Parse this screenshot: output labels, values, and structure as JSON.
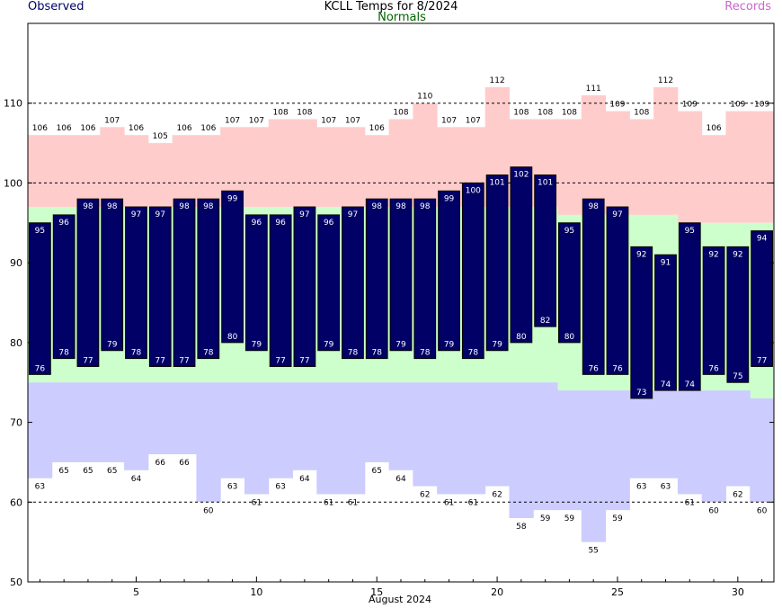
{
  "header": {
    "title": "KCLL Temps for 8/2024",
    "observed_label": "Observed",
    "normals_label": "Normals",
    "records_label": "Records"
  },
  "chart_data": {
    "type": "bar",
    "title": "KCLL Temps for 8/2024",
    "xlabel": "August 2024",
    "ylabel": "",
    "xlim": [
      0.5,
      31.5
    ],
    "ylim": [
      50,
      120
    ],
    "x_ticks": [
      5,
      10,
      15,
      20,
      25,
      30
    ],
    "y_ticks": [
      50,
      60,
      70,
      80,
      90,
      100,
      110
    ],
    "gridlines_y": [
      60,
      100,
      110
    ],
    "legend": [
      "Observed",
      "Normals",
      "Records"
    ],
    "colors": {
      "observed": "#000066",
      "normals": "#ccffcc",
      "record_high": "#ffcccc",
      "record_low": "#ccccff"
    },
    "days": [
      1,
      2,
      3,
      4,
      5,
      6,
      7,
      8,
      9,
      10,
      11,
      12,
      13,
      14,
      15,
      16,
      17,
      18,
      19,
      20,
      21,
      22,
      23,
      24,
      25,
      26,
      27,
      28,
      29,
      30,
      31
    ],
    "observed_high": [
      95,
      96,
      98,
      98,
      97,
      97,
      98,
      98,
      99,
      96,
      96,
      97,
      96,
      97,
      98,
      98,
      98,
      99,
      100,
      101,
      102,
      101,
      95,
      98,
      97,
      92,
      91,
      95,
      92,
      92,
      94
    ],
    "observed_low": [
      76,
      78,
      77,
      79,
      78,
      77,
      77,
      78,
      80,
      79,
      77,
      77,
      79,
      78,
      78,
      79,
      78,
      79,
      78,
      79,
      80,
      82,
      80,
      76,
      76,
      73,
      74,
      74,
      76,
      75,
      77
    ],
    "normal_high": [
      97,
      97,
      97,
      97,
      97,
      97,
      97,
      97,
      97,
      97,
      97,
      97,
      97,
      97,
      97,
      97,
      97,
      97,
      97,
      97,
      97,
      97,
      96,
      96,
      96,
      96,
      96,
      95,
      95,
      95,
      95
    ],
    "normal_low": [
      75,
      75,
      75,
      75,
      75,
      75,
      75,
      75,
      75,
      75,
      75,
      75,
      75,
      75,
      75,
      75,
      75,
      75,
      75,
      75,
      75,
      75,
      74,
      74,
      74,
      74,
      74,
      74,
      74,
      74,
      73
    ],
    "record_high": [
      106,
      106,
      106,
      107,
      106,
      105,
      106,
      106,
      107,
      107,
      108,
      108,
      107,
      107,
      106,
      108,
      110,
      107,
      107,
      112,
      108,
      108,
      108,
      111,
      109,
      108,
      112,
      109,
      106,
      109,
      109
    ],
    "record_low": [
      63,
      65,
      65,
      65,
      64,
      66,
      66,
      60,
      63,
      61,
      63,
      64,
      61,
      61,
      65,
      64,
      62,
      61,
      61,
      62,
      58,
      59,
      59,
      55,
      59,
      63,
      63,
      61,
      60,
      62,
      60
    ]
  }
}
